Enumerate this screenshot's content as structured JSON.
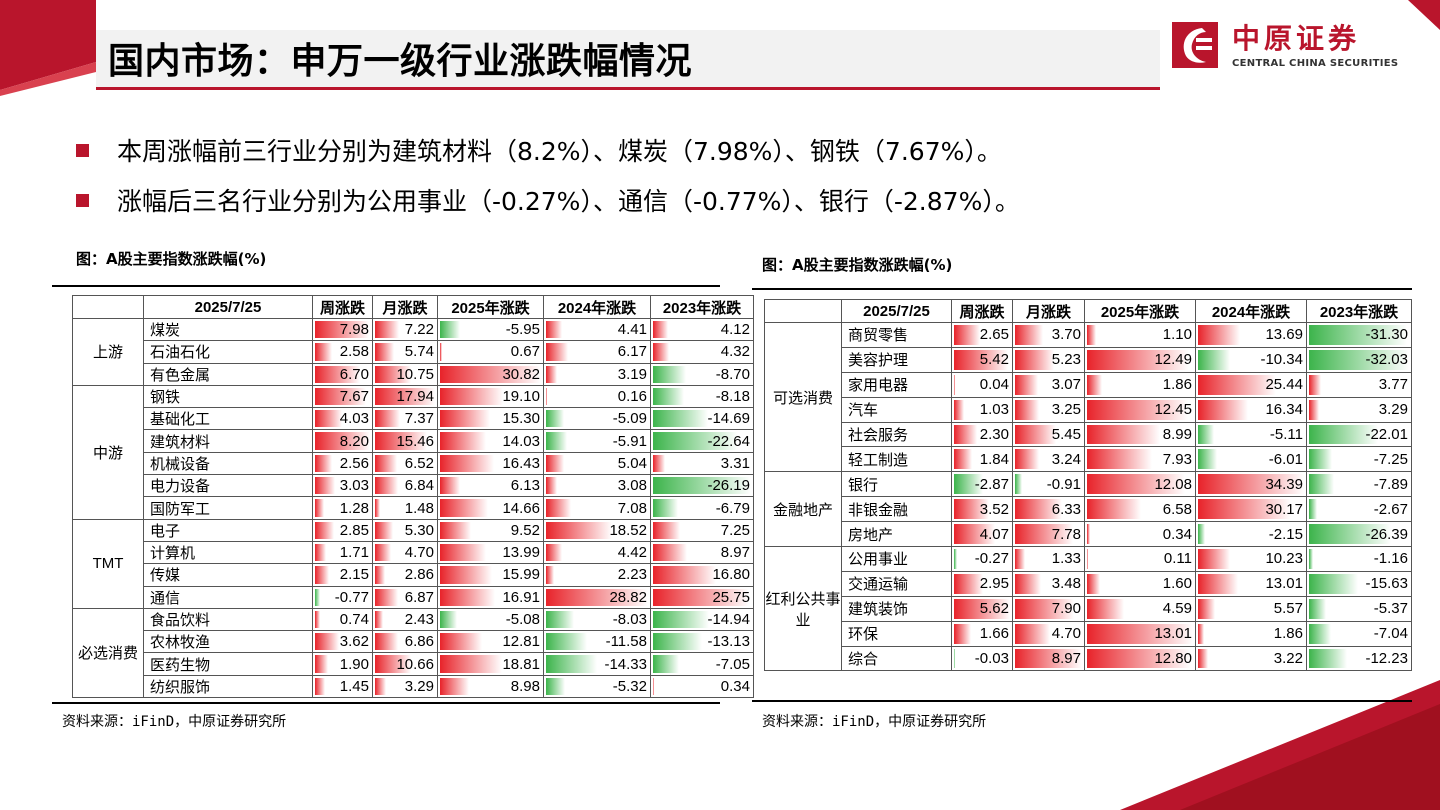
{
  "title": "国内市场：申万一级行业涨跌幅情况",
  "logo": {
    "cn": "中原证券",
    "en": "CENTRAL CHINA SECURITIES"
  },
  "bullets": [
    "本周涨幅前三行业分别为建筑材料（8.2%）、煤炭（7.98%）、钢铁（7.67%）。",
    "涨幅后三名行业分别为公用事业（-0.27%）、通信（-0.77%）、银行（-2.87%）。"
  ],
  "colors": {
    "accent": "#b9152c",
    "positive_bar": "#e8232a",
    "negative_bar": "#3cb44b"
  },
  "tables": [
    {
      "caption": "图：A股主要指数涨跌幅(%)",
      "source": "资料来源：iFinD，中原证券研究所",
      "headers": [
        "",
        "2025/7/25",
        "周涨跌",
        "月涨跌",
        "2025年涨跌",
        "2024年涨跌",
        "2023年涨跌"
      ],
      "groups": [
        {
          "name": "上游",
          "rows": [
            {
              "name": "煤炭",
              "values": [
                7.98,
                7.22,
                -5.95,
                4.41,
                4.12
              ]
            },
            {
              "name": "石油石化",
              "values": [
                2.58,
                5.74,
                0.67,
                6.17,
                4.32
              ]
            },
            {
              "name": "有色金属",
              "values": [
                6.7,
                10.75,
                30.82,
                3.19,
                -8.7
              ]
            }
          ]
        },
        {
          "name": "中游",
          "rows": [
            {
              "name": "钢铁",
              "values": [
                7.67,
                17.94,
                19.1,
                0.16,
                -8.18
              ]
            },
            {
              "name": "基础化工",
              "values": [
                4.03,
                7.37,
                15.3,
                -5.09,
                -14.69
              ]
            },
            {
              "name": "建筑材料",
              "values": [
                8.2,
                15.46,
                14.03,
                -5.91,
                -22.64
              ]
            },
            {
              "name": "机械设备",
              "values": [
                2.56,
                6.52,
                16.43,
                5.04,
                3.31
              ]
            },
            {
              "name": "电力设备",
              "values": [
                3.03,
                6.84,
                6.13,
                3.08,
                -26.19
              ]
            },
            {
              "name": "国防军工",
              "values": [
                1.28,
                1.48,
                14.66,
                7.08,
                -6.79
              ]
            }
          ]
        },
        {
          "name": "TMT",
          "rows": [
            {
              "name": "电子",
              "values": [
                2.85,
                5.3,
                9.52,
                18.52,
                7.25
              ]
            },
            {
              "name": "计算机",
              "values": [
                1.71,
                4.7,
                13.99,
                4.42,
                8.97
              ]
            },
            {
              "name": "传媒",
              "values": [
                2.15,
                2.86,
                15.99,
                2.23,
                16.8
              ]
            },
            {
              "name": "通信",
              "values": [
                -0.77,
                6.87,
                16.91,
                28.82,
                25.75
              ]
            }
          ]
        },
        {
          "name": "必选消费",
          "rows": [
            {
              "name": "食品饮料",
              "values": [
                0.74,
                2.43,
                -5.08,
                -8.03,
                -14.94
              ]
            },
            {
              "name": "农林牧渔",
              "values": [
                3.62,
                6.86,
                12.81,
                -11.58,
                -13.13
              ]
            },
            {
              "name": "医药生物",
              "values": [
                1.9,
                10.66,
                18.81,
                -14.33,
                -7.05
              ]
            },
            {
              "name": "纺织服饰",
              "values": [
                1.45,
                3.29,
                8.98,
                -5.32,
                0.34
              ]
            }
          ]
        }
      ]
    },
    {
      "caption": "图：A股主要指数涨跌幅(%)",
      "source": "资料来源：iFinD，中原证券研究所",
      "headers": [
        "",
        "2025/7/25",
        "周涨跌",
        "月涨跌",
        "2025年涨跌",
        "2024年涨跌",
        "2023年涨跌"
      ],
      "groups": [
        {
          "name": "可选消费",
          "rows": [
            {
              "name": "商贸零售",
              "values": [
                2.65,
                3.7,
                1.1,
                13.69,
                -31.3
              ]
            },
            {
              "name": "美容护理",
              "values": [
                5.42,
                5.23,
                12.49,
                -10.34,
                -32.03
              ]
            },
            {
              "name": "家用电器",
              "values": [
                0.04,
                3.07,
                1.86,
                25.44,
                3.77
              ]
            },
            {
              "name": "汽车",
              "values": [
                1.03,
                3.25,
                12.45,
                16.34,
                3.29
              ]
            },
            {
              "name": "社会服务",
              "values": [
                2.3,
                5.45,
                8.99,
                -5.11,
                -22.01
              ]
            },
            {
              "name": "轻工制造",
              "values": [
                1.84,
                3.24,
                7.93,
                -6.01,
                -7.25
              ]
            }
          ]
        },
        {
          "name": "金融地产",
          "rows": [
            {
              "name": "银行",
              "values": [
                -2.87,
                -0.91,
                12.08,
                34.39,
                -7.89
              ]
            },
            {
              "name": "非银金融",
              "values": [
                3.52,
                6.33,
                6.58,
                30.17,
                -2.67
              ]
            },
            {
              "name": "房地产",
              "values": [
                4.07,
                7.78,
                0.34,
                -2.15,
                -26.39
              ]
            }
          ]
        },
        {
          "name": "红利公共事业",
          "rows": [
            {
              "name": "公用事业",
              "values": [
                -0.27,
                1.33,
                0.11,
                10.23,
                -1.16
              ]
            },
            {
              "name": "交通运输",
              "values": [
                2.95,
                3.48,
                1.6,
                13.01,
                -15.63
              ]
            },
            {
              "name": "建筑装饰",
              "values": [
                5.62,
                7.9,
                4.59,
                5.57,
                -5.37
              ]
            },
            {
              "name": "环保",
              "values": [
                1.66,
                4.7,
                13.01,
                1.86,
                -7.04
              ]
            },
            {
              "name": "综合",
              "values": [
                -0.03,
                8.97,
                12.8,
                3.22,
                -12.23
              ]
            }
          ]
        }
      ]
    }
  ]
}
